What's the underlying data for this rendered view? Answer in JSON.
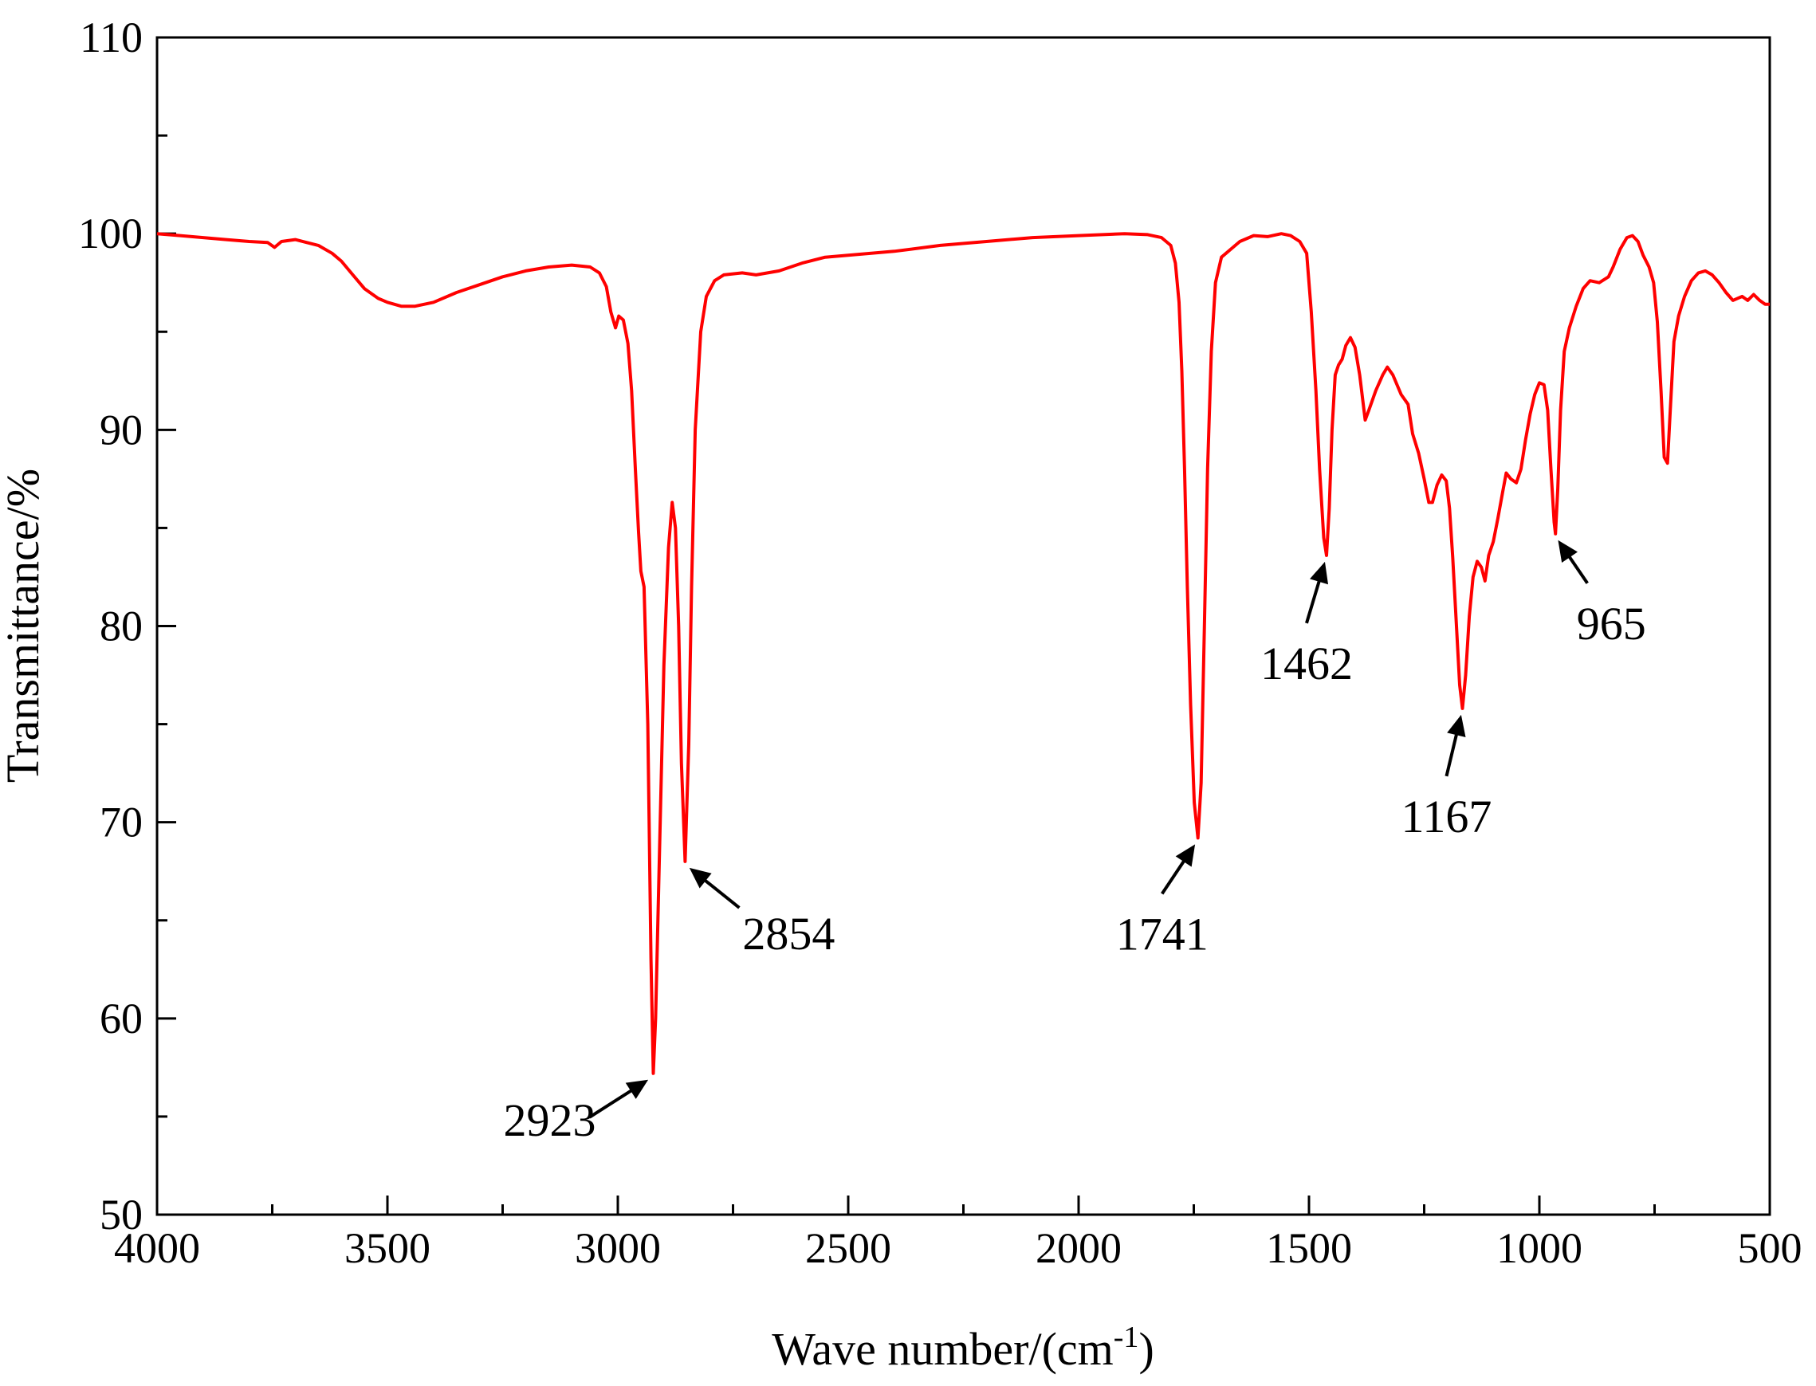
{
  "chart_data": {
    "type": "line",
    "title": "",
    "xlabel": "Wave number/(cm",
    "xlabel_sup": "-1",
    "xlabel_close": ")",
    "ylabel": "Transmittance/%",
    "xlim": [
      4000,
      500
    ],
    "ylim": [
      50,
      110
    ],
    "x_reversed": true,
    "grid": false,
    "x_ticks": [
      4000,
      3500,
      3000,
      2500,
      2000,
      1500,
      1000,
      500
    ],
    "x_tick_labels": [
      "4000",
      "3500",
      "3000",
      "2500",
      "2000",
      "1500",
      "1000",
      "500"
    ],
    "y_ticks": [
      50,
      60,
      70,
      80,
      90,
      100,
      110
    ],
    "y_tick_labels": [
      "50",
      "60",
      "70",
      "80",
      "90",
      "100",
      "110"
    ],
    "x_minor_step": 250,
    "y_minor_step": 5,
    "colors": {
      "series": "#ff0000",
      "axes": "#000000",
      "arrow": "#000000"
    },
    "series": [
      {
        "color": "#ff0000",
        "points": [
          [
            4000,
            100.0
          ],
          [
            3950,
            99.9
          ],
          [
            3900,
            99.8
          ],
          [
            3850,
            99.7
          ],
          [
            3800,
            99.6
          ],
          [
            3760,
            99.55
          ],
          [
            3745,
            99.3
          ],
          [
            3730,
            99.6
          ],
          [
            3700,
            99.7
          ],
          [
            3650,
            99.4
          ],
          [
            3620,
            99.0
          ],
          [
            3600,
            98.6
          ],
          [
            3575,
            97.9
          ],
          [
            3550,
            97.2
          ],
          [
            3520,
            96.7
          ],
          [
            3500,
            96.5
          ],
          [
            3470,
            96.3
          ],
          [
            3440,
            96.3
          ],
          [
            3400,
            96.5
          ],
          [
            3350,
            97.0
          ],
          [
            3300,
            97.4
          ],
          [
            3250,
            97.8
          ],
          [
            3200,
            98.1
          ],
          [
            3150,
            98.3
          ],
          [
            3100,
            98.4
          ],
          [
            3060,
            98.3
          ],
          [
            3040,
            98.0
          ],
          [
            3025,
            97.3
          ],
          [
            3015,
            96.0
          ],
          [
            3005,
            95.2
          ],
          [
            2998,
            95.8
          ],
          [
            2988,
            95.6
          ],
          [
            2978,
            94.4
          ],
          [
            2970,
            92.0
          ],
          [
            2962,
            88.0
          ],
          [
            2955,
            84.8
          ],
          [
            2950,
            82.8
          ],
          [
            2943,
            82.0
          ],
          [
            2935,
            75.0
          ],
          [
            2928,
            63.0
          ],
          [
            2923,
            57.2
          ],
          [
            2918,
            60.0
          ],
          [
            2910,
            68.0
          ],
          [
            2900,
            78.0
          ],
          [
            2890,
            84.0
          ],
          [
            2882,
            86.3
          ],
          [
            2875,
            85.0
          ],
          [
            2868,
            80.0
          ],
          [
            2862,
            73.0
          ],
          [
            2854,
            68.0
          ],
          [
            2846,
            74.0
          ],
          [
            2840,
            82.0
          ],
          [
            2832,
            90.0
          ],
          [
            2820,
            95.0
          ],
          [
            2808,
            96.8
          ],
          [
            2790,
            97.6
          ],
          [
            2770,
            97.9
          ],
          [
            2730,
            98.0
          ],
          [
            2700,
            97.9
          ],
          [
            2650,
            98.1
          ],
          [
            2600,
            98.5
          ],
          [
            2550,
            98.8
          ],
          [
            2500,
            98.9
          ],
          [
            2400,
            99.1
          ],
          [
            2300,
            99.4
          ],
          [
            2200,
            99.6
          ],
          [
            2100,
            99.8
          ],
          [
            2000,
            99.9
          ],
          [
            1900,
            100.0
          ],
          [
            1850,
            99.95
          ],
          [
            1820,
            99.8
          ],
          [
            1800,
            99.4
          ],
          [
            1790,
            98.5
          ],
          [
            1782,
            96.5
          ],
          [
            1776,
            93.0
          ],
          [
            1770,
            88.0
          ],
          [
            1764,
            82.0
          ],
          [
            1757,
            76.0
          ],
          [
            1749,
            71.0
          ],
          [
            1741,
            69.2
          ],
          [
            1734,
            72.0
          ],
          [
            1727,
            80.0
          ],
          [
            1720,
            88.0
          ],
          [
            1712,
            94.0
          ],
          [
            1703,
            97.5
          ],
          [
            1690,
            98.8
          ],
          [
            1670,
            99.2
          ],
          [
            1650,
            99.6
          ],
          [
            1620,
            99.9
          ],
          [
            1590,
            99.85
          ],
          [
            1560,
            100.0
          ],
          [
            1540,
            99.9
          ],
          [
            1520,
            99.6
          ],
          [
            1505,
            99.0
          ],
          [
            1495,
            96.0
          ],
          [
            1485,
            92.0
          ],
          [
            1477,
            88.0
          ],
          [
            1468,
            84.5
          ],
          [
            1462,
            83.6
          ],
          [
            1456,
            86.0
          ],
          [
            1450,
            90.0
          ],
          [
            1443,
            92.8
          ],
          [
            1436,
            93.3
          ],
          [
            1428,
            93.6
          ],
          [
            1420,
            94.3
          ],
          [
            1410,
            94.7
          ],
          [
            1400,
            94.2
          ],
          [
            1390,
            92.8
          ],
          [
            1378,
            90.5
          ],
          [
            1370,
            91.0
          ],
          [
            1355,
            92.0
          ],
          [
            1340,
            92.8
          ],
          [
            1330,
            93.2
          ],
          [
            1318,
            92.8
          ],
          [
            1300,
            91.8
          ],
          [
            1285,
            91.3
          ],
          [
            1275,
            89.8
          ],
          [
            1262,
            88.8
          ],
          [
            1250,
            87.5
          ],
          [
            1240,
            86.3
          ],
          [
            1232,
            86.3
          ],
          [
            1222,
            87.2
          ],
          [
            1212,
            87.7
          ],
          [
            1202,
            87.4
          ],
          [
            1195,
            86.0
          ],
          [
            1188,
            83.5
          ],
          [
            1180,
            80.0
          ],
          [
            1173,
            77.0
          ],
          [
            1167,
            75.8
          ],
          [
            1160,
            77.5
          ],
          [
            1152,
            80.5
          ],
          [
            1144,
            82.5
          ],
          [
            1135,
            83.3
          ],
          [
            1126,
            83.0
          ],
          [
            1118,
            82.3
          ],
          [
            1110,
            83.6
          ],
          [
            1100,
            84.3
          ],
          [
            1090,
            85.5
          ],
          [
            1080,
            86.8
          ],
          [
            1072,
            87.8
          ],
          [
            1062,
            87.5
          ],
          [
            1050,
            87.3
          ],
          [
            1040,
            88.0
          ],
          [
            1030,
            89.5
          ],
          [
            1020,
            90.8
          ],
          [
            1010,
            91.8
          ],
          [
            1000,
            92.4
          ],
          [
            990,
            92.3
          ],
          [
            982,
            91.0
          ],
          [
            975,
            88.0
          ],
          [
            968,
            85.3
          ],
          [
            965,
            84.7
          ],
          [
            960,
            87.0
          ],
          [
            954,
            91.0
          ],
          [
            946,
            94.0
          ],
          [
            935,
            95.2
          ],
          [
            920,
            96.3
          ],
          [
            905,
            97.2
          ],
          [
            890,
            97.6
          ],
          [
            870,
            97.5
          ],
          [
            850,
            97.8
          ],
          [
            840,
            98.3
          ],
          [
            825,
            99.2
          ],
          [
            810,
            99.8
          ],
          [
            798,
            99.9
          ],
          [
            786,
            99.6
          ],
          [
            775,
            98.9
          ],
          [
            762,
            98.3
          ],
          [
            752,
            97.5
          ],
          [
            744,
            95.5
          ],
          [
            736,
            92.0
          ],
          [
            729,
            88.6
          ],
          [
            722,
            88.3
          ],
          [
            716,
            91.0
          ],
          [
            708,
            94.5
          ],
          [
            698,
            95.8
          ],
          [
            685,
            96.8
          ],
          [
            670,
            97.6
          ],
          [
            655,
            98.0
          ],
          [
            640,
            98.1
          ],
          [
            625,
            97.9
          ],
          [
            610,
            97.5
          ],
          [
            595,
            97.0
          ],
          [
            580,
            96.6
          ],
          [
            570,
            96.7
          ],
          [
            560,
            96.8
          ],
          [
            548,
            96.6
          ],
          [
            535,
            96.9
          ],
          [
            522,
            96.6
          ],
          [
            510,
            96.4
          ],
          [
            500,
            96.4
          ]
        ]
      }
    ],
    "annotations": [
      {
        "text": "2923",
        "x": 2923,
        "y": 57.2
      },
      {
        "text": "2854",
        "x": 2854,
        "y": 68.0
      },
      {
        "text": "1741",
        "x": 1741,
        "y": 69.2
      },
      {
        "text": "1462",
        "x": 1462,
        "y": 83.6
      },
      {
        "text": "1167",
        "x": 1167,
        "y": 75.8
      },
      {
        "text": "965",
        "x": 965,
        "y": 84.7
      }
    ]
  }
}
